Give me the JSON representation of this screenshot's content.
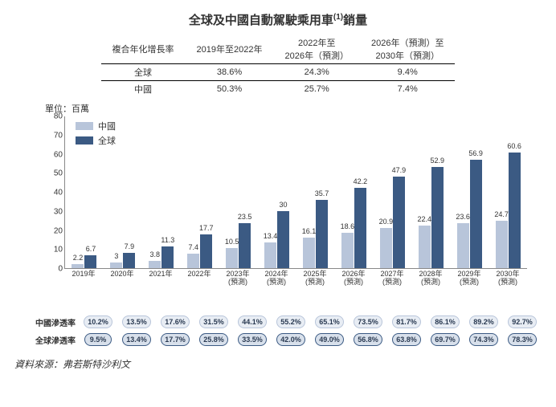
{
  "title_pre": "全球及中國自動駕駛乘用車",
  "title_sup": "(1)",
  "title_post": "銷量",
  "cagr": {
    "header": [
      "複合年化增長率",
      "2019年至2022年",
      "2022年至\n2026年（預測）",
      "2026年（預測）至\n2030年（預測）"
    ],
    "rows": [
      [
        "全球",
        "38.6%",
        "24.3%",
        "9.4%"
      ],
      [
        "中國",
        "50.3%",
        "25.7%",
        "7.4%"
      ]
    ]
  },
  "unit_label": "單位：百萬",
  "legend": {
    "china": "中國",
    "global": "全球"
  },
  "colors": {
    "china": "#b8c5da",
    "global": "#3b5a83",
    "china_border": "#b8c5da",
    "global_border": "#3b5a83",
    "pill_china_bg": "#e8edf4",
    "pill_global_bg": "#d8e0eb"
  },
  "ymax": 80,
  "yticks": [
    0,
    10,
    20,
    30,
    40,
    50,
    60,
    70,
    80
  ],
  "categories": [
    {
      "l1": "2019年",
      "l2": ""
    },
    {
      "l1": "2020年",
      "l2": ""
    },
    {
      "l1": "2021年",
      "l2": ""
    },
    {
      "l1": "2022年",
      "l2": ""
    },
    {
      "l1": "2023年",
      "l2": "(預測)"
    },
    {
      "l1": "2024年",
      "l2": "(預測)"
    },
    {
      "l1": "2025年",
      "l2": "(預測)"
    },
    {
      "l1": "2026年",
      "l2": "(預測)"
    },
    {
      "l1": "2027年",
      "l2": "(預測)"
    },
    {
      "l1": "2028年",
      "l2": "(預測)"
    },
    {
      "l1": "2029年",
      "l2": "(預測)"
    },
    {
      "l1": "2030年",
      "l2": "(預測)"
    }
  ],
  "series": {
    "china": [
      2.2,
      3.0,
      3.8,
      7.4,
      10.5,
      13.4,
      16.1,
      18.6,
      20.9,
      22.4,
      23.6,
      24.7
    ],
    "global": [
      6.7,
      7.9,
      11.3,
      17.7,
      23.5,
      30.0,
      35.7,
      42.2,
      47.9,
      52.9,
      56.9,
      60.6
    ]
  },
  "penetration": {
    "china_label": "中國滲透率",
    "global_label": "全球滲透率",
    "china": [
      "10.2%",
      "13.5%",
      "17.6%",
      "31.5%",
      "44.1%",
      "55.2%",
      "65.1%",
      "73.5%",
      "81.7%",
      "86.1%",
      "89.2%",
      "92.7%"
    ],
    "global": [
      "9.5%",
      "13.4%",
      "17.7%",
      "25.8%",
      "33.5%",
      "42.0%",
      "49.0%",
      "56.8%",
      "63.8%",
      "69.7%",
      "74.3%",
      "78.3%"
    ]
  },
  "source": "資料來源：弗若斯特沙利文"
}
